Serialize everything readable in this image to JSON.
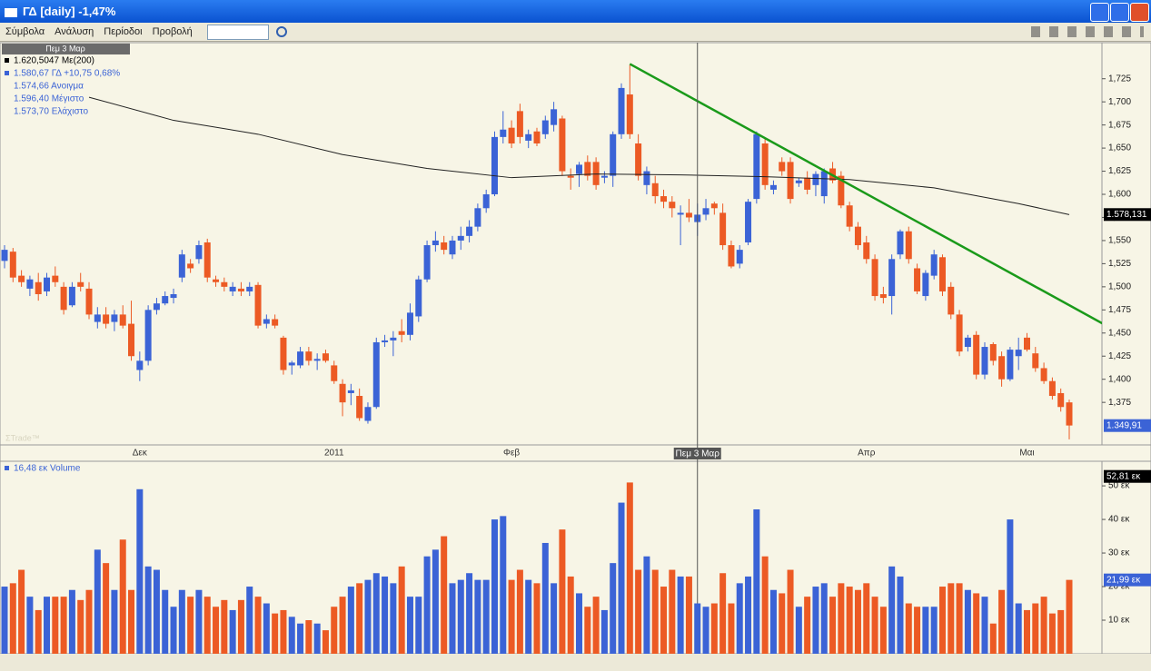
{
  "window_title": "ΓΔ [daily] -1,47%",
  "menu": [
    "Σύμβολα",
    "Ανάλυση",
    "Περίοδοι",
    "Προβολή"
  ],
  "chart_data": [
    {
      "type": "candlestick",
      "date_box": "Πεμ 3 Μαρ",
      "legend": [
        "1.620,5047 Με(200)",
        "1.580,67 ΓΔ +10,75 0,68%",
        "1.574,66 Ανοιγμα",
        "1.596,40 Μέγιστο",
        "1.573,70 Ελάχιστο"
      ],
      "watermark": "ΣTrade™",
      "colors": {
        "up": "#3b63d6",
        "down": "#ec5a24"
      },
      "ylim": [
        1.329,
        1.764
      ],
      "yticks": [
        {
          "value": 1.375,
          "label": "1,375"
        },
        {
          "value": 1.4,
          "label": "1,400"
        },
        {
          "value": 1.425,
          "label": "1,425"
        },
        {
          "value": 1.45,
          "label": "1,450"
        },
        {
          "value": 1.475,
          "label": "1,475"
        },
        {
          "value": 1.5,
          "label": "1,500"
        },
        {
          "value": 1.525,
          "label": "1,525"
        },
        {
          "value": 1.55,
          "label": "1,550"
        },
        {
          "value": 1.575,
          "label": "1,575"
        },
        {
          "value": 1.6,
          "label": "1,600"
        },
        {
          "value": 1.625,
          "label": "1,625"
        },
        {
          "value": 1.65,
          "label": "1,650"
        },
        {
          "value": 1.675,
          "label": "1,675"
        },
        {
          "value": 1.7,
          "label": "1,700"
        },
        {
          "value": 1.725,
          "label": "1,725"
        }
      ],
      "xticks": [
        {
          "value": 16,
          "label": "Δεκ"
        },
        {
          "value": 39,
          "label": "2011"
        },
        {
          "value": 60,
          "label": "Φεβ"
        },
        {
          "value": 102,
          "label": "Απρ"
        },
        {
          "value": 121,
          "label": "Μαι"
        }
      ],
      "cursor": {
        "value": 82,
        "label": "Πεμ 3 Μαρ"
      },
      "last_labels": [
        {
          "value": 1.578131,
          "label": "1.578,131",
          "color": "#000000"
        },
        {
          "value": 1.34991,
          "label": "1.349,91",
          "color": "#3b63d6"
        }
      ],
      "trendline": {
        "color": "#1a9a1a",
        "x": [
          74,
          130
        ],
        "values": [
          1.741,
          1.46
        ]
      },
      "series": [
        {
          "name": "ΓΔ",
          "values": [
            [
              1.528,
              1.545,
              1.52,
              1.54
            ],
            [
              1.538,
              1.542,
              1.505,
              1.51
            ],
            [
              1.512,
              1.518,
              1.5,
              1.505
            ],
            [
              1.498,
              1.512,
              1.49,
              1.508
            ],
            [
              1.505,
              1.515,
              1.485,
              1.492
            ],
            [
              1.495,
              1.515,
              1.49,
              1.51
            ],
            [
              1.512,
              1.522,
              1.5,
              1.505
            ],
            [
              1.5,
              1.505,
              1.47,
              1.475
            ],
            [
              1.48,
              1.505,
              1.478,
              1.5
            ],
            [
              1.505,
              1.515,
              1.495,
              1.5
            ],
            [
              1.498,
              1.505,
              1.465,
              1.47
            ],
            [
              1.462,
              1.478,
              1.455,
              1.47
            ],
            [
              1.47,
              1.478,
              1.455,
              1.46
            ],
            [
              1.462,
              1.475,
              1.452,
              1.47
            ],
            [
              1.47,
              1.48,
              1.455,
              1.458
            ],
            [
              1.46,
              1.485,
              1.42,
              1.425
            ],
            [
              1.41,
              1.43,
              1.398,
              1.42
            ],
            [
              1.42,
              1.48,
              1.415,
              1.475
            ],
            [
              1.475,
              1.488,
              1.47,
              1.482
            ],
            [
              1.482,
              1.495,
              1.48,
              1.49
            ],
            [
              1.488,
              1.498,
              1.482,
              1.492
            ],
            [
              1.51,
              1.54,
              1.505,
              1.535
            ],
            [
              1.525,
              1.53,
              1.515,
              1.52
            ],
            [
              1.53,
              1.55,
              1.525,
              1.545
            ],
            [
              1.548,
              1.552,
              1.505,
              1.51
            ],
            [
              1.508,
              1.512,
              1.5,
              1.505
            ],
            [
              1.505,
              1.51,
              1.495,
              1.5
            ],
            [
              1.495,
              1.505,
              1.49,
              1.5
            ],
            [
              1.498,
              1.505,
              1.49,
              1.495
            ],
            [
              1.495,
              1.505,
              1.49,
              1.5
            ],
            [
              1.502,
              1.505,
              1.455,
              1.458
            ],
            [
              1.46,
              1.47,
              1.455,
              1.465
            ],
            [
              1.465,
              1.47,
              1.455,
              1.458
            ],
            [
              1.445,
              1.447,
              1.405,
              1.41
            ],
            [
              1.415,
              1.42,
              1.405,
              1.418
            ],
            [
              1.415,
              1.435,
              1.412,
              1.43
            ],
            [
              1.43,
              1.435,
              1.415,
              1.42
            ],
            [
              1.42,
              1.428,
              1.41,
              1.422
            ],
            [
              1.428,
              1.432,
              1.418,
              1.42
            ],
            [
              1.415,
              1.42,
              1.395,
              1.398
            ],
            [
              1.395,
              1.4,
              1.36,
              1.375
            ],
            [
              1.385,
              1.395,
              1.372,
              1.388
            ],
            [
              1.382,
              1.39,
              1.355,
              1.358
            ],
            [
              1.355,
              1.375,
              1.352,
              1.37
            ],
            [
              1.37,
              1.445,
              1.368,
              1.44
            ],
            [
              1.44,
              1.448,
              1.435,
              1.442
            ],
            [
              1.442,
              1.452,
              1.425,
              1.445
            ],
            [
              1.452,
              1.465,
              1.44,
              1.448
            ],
            [
              1.448,
              1.482,
              1.442,
              1.472
            ],
            [
              1.468,
              1.512,
              1.462,
              1.508
            ],
            [
              1.508,
              1.55,
              1.505,
              1.545
            ],
            [
              1.545,
              1.56,
              1.538,
              1.55
            ],
            [
              1.548,
              1.555,
              1.535,
              1.54
            ],
            [
              1.535,
              1.555,
              1.53,
              1.55
            ],
            [
              1.55,
              1.565,
              1.54,
              1.555
            ],
            [
              1.555,
              1.572,
              1.548,
              1.565
            ],
            [
              1.565,
              1.59,
              1.56,
              1.585
            ],
            [
              1.585,
              1.605,
              1.58,
              1.6
            ],
            [
              1.6,
              1.668,
              1.598,
              1.662
            ],
            [
              1.662,
              1.69,
              1.655,
              1.67
            ],
            [
              1.672,
              1.68,
              1.65,
              1.655
            ],
            [
              1.69,
              1.698,
              1.655,
              1.662
            ],
            [
              1.658,
              1.67,
              1.65,
              1.665
            ],
            [
              1.668,
              1.672,
              1.652,
              1.655
            ],
            [
              1.665,
              1.685,
              1.66,
              1.68
            ],
            [
              1.675,
              1.7,
              1.668,
              1.692
            ],
            [
              1.682,
              1.685,
              1.62,
              1.625
            ],
            [
              1.62,
              1.628,
              1.605,
              1.618
            ],
            [
              1.622,
              1.635,
              1.608,
              1.632
            ],
            [
              1.635,
              1.642,
              1.615,
              1.62
            ],
            [
              1.635,
              1.64,
              1.605,
              1.61
            ],
            [
              1.618,
              1.625,
              1.612,
              1.62
            ],
            [
              1.62,
              1.668,
              1.608,
              1.665
            ],
            [
              1.665,
              1.72,
              1.66,
              1.715
            ],
            [
              1.708,
              1.74,
              1.66,
              1.665
            ],
            [
              1.655,
              1.665,
              1.615,
              1.62
            ],
            [
              1.61,
              1.63,
              1.6,
              1.625
            ],
            [
              1.612,
              1.62,
              1.59,
              1.598
            ],
            [
              1.598,
              1.605,
              1.585,
              1.592
            ],
            [
              1.592,
              1.598,
              1.575,
              1.585
            ],
            [
              1.578,
              1.588,
              1.545,
              1.58
            ],
            [
              1.58,
              1.595,
              1.57,
              1.575
            ],
            [
              1.57,
              1.59,
              1.555,
              1.578
            ],
            [
              1.578,
              1.595,
              1.572,
              1.585
            ],
            [
              1.59,
              1.592,
              1.578,
              1.585
            ],
            [
              1.58,
              1.59,
              1.54,
              1.545
            ],
            [
              1.545,
              1.55,
              1.52,
              1.522
            ],
            [
              1.525,
              1.545,
              1.52,
              1.54
            ],
            [
              1.548,
              1.595,
              1.545,
              1.592
            ],
            [
              1.595,
              1.668,
              1.59,
              1.665
            ],
            [
              1.655,
              1.66,
              1.605,
              1.61
            ],
            [
              1.605,
              1.615,
              1.6,
              1.61
            ],
            [
              1.635,
              1.64,
              1.62,
              1.625
            ],
            [
              1.635,
              1.64,
              1.59,
              1.595
            ],
            [
              1.612,
              1.618,
              1.608,
              1.615
            ],
            [
              1.618,
              1.625,
              1.6,
              1.605
            ],
            [
              1.61,
              1.625,
              1.598,
              1.622
            ],
            [
              1.598,
              1.628,
              1.59,
              1.625
            ],
            [
              1.628,
              1.635,
              1.612,
              1.615
            ],
            [
              1.62,
              1.625,
              1.585,
              1.588
            ],
            [
              1.588,
              1.592,
              1.56,
              1.565
            ],
            [
              1.565,
              1.57,
              1.54,
              1.545
            ],
            [
              1.548,
              1.555,
              1.525,
              1.53
            ],
            [
              1.53,
              1.535,
              1.485,
              1.49
            ],
            [
              1.492,
              1.5,
              1.482,
              1.488
            ],
            [
              1.49,
              1.535,
              1.47,
              1.53
            ],
            [
              1.535,
              1.562,
              1.53,
              1.56
            ],
            [
              1.56,
              1.565,
              1.525,
              1.53
            ],
            [
              1.52,
              1.525,
              1.492,
              1.495
            ],
            [
              1.49,
              1.518,
              1.485,
              1.515
            ],
            [
              1.512,
              1.54,
              1.508,
              1.535
            ],
            [
              1.532,
              1.535,
              1.49,
              1.495
            ],
            [
              1.5,
              1.505,
              1.465,
              1.47
            ],
            [
              1.47,
              1.475,
              1.425,
              1.43
            ],
            [
              1.435,
              1.448,
              1.43,
              1.445
            ],
            [
              1.448,
              1.452,
              1.4,
              1.405
            ],
            [
              1.405,
              1.44,
              1.4,
              1.435
            ],
            [
              1.438,
              1.44,
              1.415,
              1.42
            ],
            [
              1.425,
              1.43,
              1.392,
              1.4
            ],
            [
              1.4,
              1.435,
              1.398,
              1.432
            ],
            [
              1.425,
              1.445,
              1.41,
              1.432
            ],
            [
              1.445,
              1.45,
              1.43,
              1.432
            ],
            [
              1.428,
              1.435,
              1.408,
              1.412
            ],
            [
              1.412,
              1.418,
              1.395,
              1.398
            ],
            [
              1.398,
              1.402,
              1.378,
              1.382
            ],
            [
              1.385,
              1.39,
              1.365,
              1.37
            ],
            [
              1.375,
              1.378,
              1.335,
              1.35
            ]
          ]
        },
        {
          "name": "Με(200)",
          "color": "#222222",
          "x": [
            10,
            20,
            30,
            40,
            50,
            60,
            70,
            80,
            90,
            100,
            110,
            120,
            126
          ],
          "values": [
            1.705,
            1.68,
            1.665,
            1.643,
            1.628,
            1.618,
            1.622,
            1.621,
            1.619,
            1.616,
            1.607,
            1.59,
            1.578
          ]
        }
      ]
    },
    {
      "type": "bar",
      "title": "16,48 εκ Volume",
      "ylim": [
        0,
        53
      ],
      "yticks": [
        {
          "value": 10,
          "label": "10 εκ"
        },
        {
          "value": 20,
          "label": "20 εκ"
        },
        {
          "value": 30,
          "label": "30 εκ"
        },
        {
          "value": 40,
          "label": "40 εκ"
        },
        {
          "value": 50,
          "label": "50 εκ"
        }
      ],
      "last_labels": [
        {
          "value": 52.81,
          "label": "52,81 εκ",
          "color": "#000000"
        },
        {
          "value": 21.99,
          "label": "21,99 εκ",
          "color": "#3b63d6"
        }
      ],
      "values": [
        20,
        21,
        25,
        17,
        13,
        17,
        17,
        17,
        19,
        16,
        19,
        31,
        27,
        19,
        34,
        19,
        49,
        26,
        25,
        19,
        14,
        19,
        17,
        19,
        17,
        14,
        16,
        13,
        16,
        20,
        17,
        15,
        12,
        13,
        11,
        9,
        10,
        9,
        7,
        14,
        17,
        20,
        21,
        22,
        24,
        23,
        21,
        26,
        17,
        17,
        29,
        31,
        35,
        21,
        22,
        24,
        22,
        22,
        40,
        41,
        22,
        25,
        22,
        21,
        33,
        21,
        37,
        23,
        18,
        14,
        17,
        13,
        27,
        45,
        51,
        25,
        29,
        25,
        20,
        25,
        23,
        23,
        15,
        14,
        15,
        24,
        15,
        21,
        23,
        43,
        29,
        19,
        18,
        25,
        14,
        17,
        20,
        21,
        17,
        21,
        20,
        19,
        21,
        17,
        14,
        26,
        23,
        15,
        14,
        14,
        14,
        20,
        21,
        21,
        19,
        18,
        17,
        9,
        19,
        40,
        15,
        13,
        15,
        17,
        12,
        13,
        22
      ]
    }
  ]
}
